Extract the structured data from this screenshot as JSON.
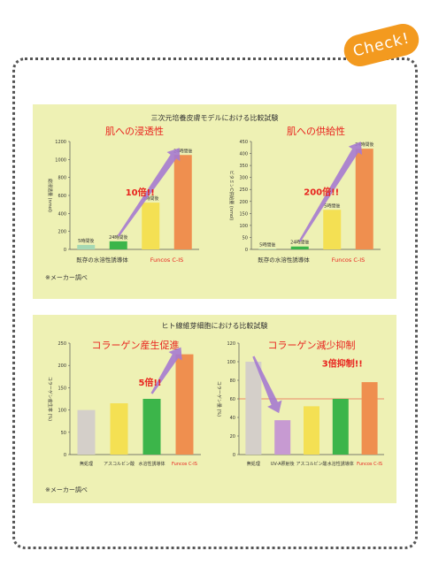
{
  "badge": {
    "label": "Check!"
  },
  "sections": [
    {
      "title": "三次元培養皮膚モデルにおける比較試験",
      "note": "※メーカー調べ"
    },
    {
      "title": "ヒト線維芽細胞における比較試験",
      "note": "※メーカー調べ"
    }
  ],
  "colors": {
    "panel": "#eef1b4",
    "arrow": "#a57ad0",
    "multiplier": "#e8231e",
    "title_red": "#e8231e",
    "badge": "#f39a1f"
  },
  "chart_data": [
    {
      "type": "bar",
      "title": "肌への浸透性",
      "ylabel": "総浸透量 (nmol)",
      "ylim": [
        0,
        1200
      ],
      "yticks": [
        0,
        200,
        400,
        600,
        800,
        1000,
        1200
      ],
      "bar_labels": [
        "5時間後",
        "24時間後",
        "5時間後",
        "24時間後"
      ],
      "values": [
        50,
        90,
        520,
        1050
      ],
      "bar_colors": [
        "#a6d9b4",
        "#3cb54a",
        "#f4e053",
        "#ef8f4f"
      ],
      "groups": [
        {
          "label": "既存の水溶性誘導体",
          "color": "#333333"
        },
        {
          "label": "Funcos C-IS",
          "color": "#e8231e"
        }
      ],
      "annotation": "10倍!!",
      "arrow_from": 1,
      "arrow_to": 3
    },
    {
      "type": "bar",
      "title": "肌への供給性",
      "ylabel": "ビタミンC供給量 (nmol)",
      "ylim": [
        0,
        450
      ],
      "yticks": [
        0,
        50,
        100,
        150,
        200,
        250,
        300,
        350,
        400,
        450
      ],
      "bar_labels": [
        "5時間後",
        "24時間後",
        "5時間後",
        "24時間後"
      ],
      "values": [
        2,
        12,
        165,
        420
      ],
      "bar_colors": [
        "#a6d9b4",
        "#3cb54a",
        "#f4e053",
        "#ef8f4f"
      ],
      "groups": [
        {
          "label": "既存の水溶性誘導体",
          "color": "#333333"
        },
        {
          "label": "Funcos C-IS",
          "color": "#e8231e"
        }
      ],
      "annotation": "200倍!!",
      "arrow_from": 1,
      "arrow_to": 3
    },
    {
      "type": "bar",
      "title": "コラーゲン産生促進",
      "ylabel": "コラーゲン産生率 (%)",
      "ylim": [
        0,
        250
      ],
      "yticks": [
        0,
        50,
        100,
        150,
        200,
        250
      ],
      "categories": [
        "無処理",
        "アスコルビン酸",
        "水溶性誘導体",
        "Funcos C-IS"
      ],
      "category_colors": [
        "#333333",
        "#333333",
        "#333333",
        "#e8231e"
      ],
      "values": [
        100,
        115,
        125,
        225
      ],
      "bar_colors": [
        "#d4cfc9",
        "#f4e053",
        "#3cb54a",
        "#ef8f4f"
      ],
      "annotation": "5倍!!",
      "arrow_from": 2,
      "arrow_to": 3
    },
    {
      "type": "bar",
      "title": "コラーゲン減少抑制",
      "ylabel": "コラーゲン量 (%)",
      "ylim": [
        0,
        120
      ],
      "yticks": [
        0,
        20,
        40,
        60,
        80,
        100,
        120
      ],
      "categories": [
        "無処理",
        "UV-A照射後",
        "アスコルビン酸",
        "水溶性誘導体",
        "Funcos C-IS"
      ],
      "category_colors": [
        "#333333",
        "#333333",
        "#333333",
        "#333333",
        "#e8231e"
      ],
      "values": [
        100,
        37,
        52,
        60,
        78
      ],
      "bar_colors": [
        "#d4cfc9",
        "#c79ad2",
        "#f4e053",
        "#3cb54a",
        "#ef8f4f"
      ],
      "annotation": "3倍抑制!!",
      "arrow_from": 0,
      "arrow_to": 1,
      "ref_line_value": 60,
      "ref_line_color": "#e8231e"
    }
  ]
}
